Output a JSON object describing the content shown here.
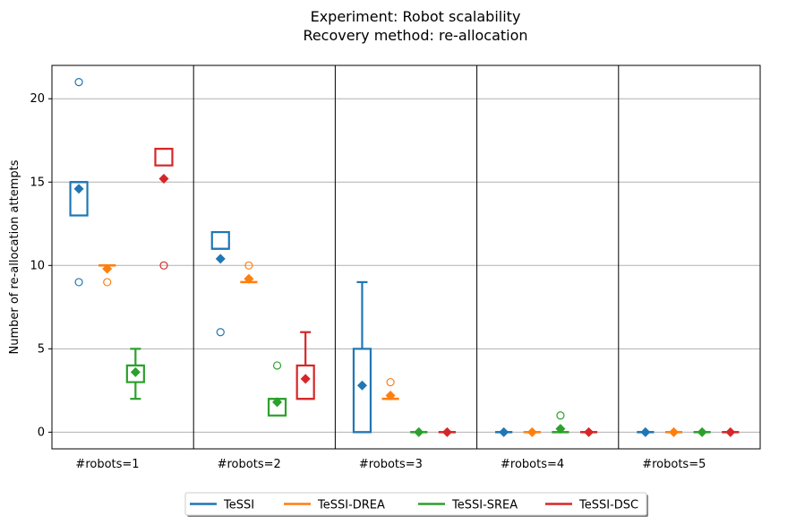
{
  "chart_data": {
    "type": "box",
    "title": [
      "Experiment: Robot scalability",
      "Recovery method: re-allocation"
    ],
    "xlabel": "",
    "ylabel": "Number of re-allocation attempts",
    "ylim": [
      -1,
      22
    ],
    "yticks": [
      0,
      5,
      10,
      15,
      20
    ],
    "grid": "y",
    "legend_position": "bottom-center",
    "categories": [
      "#robots=1",
      "#robots=2",
      "#robots=3",
      "#robots=4",
      "#robots=5"
    ],
    "series": [
      {
        "name": "TeSSI",
        "color": "#1f77b4",
        "boxes": [
          {
            "q1": 13,
            "median": 15,
            "q3": 15,
            "whislo": 13,
            "whishi": 15,
            "mean": 14.6,
            "fliers": [
              21,
              9
            ]
          },
          {
            "q1": 11,
            "median": 11,
            "q3": 12,
            "whislo": 11,
            "whishi": 12,
            "mean": 10.4,
            "fliers": [
              6
            ]
          },
          {
            "q1": 0,
            "median": 0,
            "q3": 5,
            "whislo": 0,
            "whishi": 9,
            "mean": 2.8,
            "fliers": []
          },
          {
            "q1": 0,
            "median": 0,
            "q3": 0,
            "whislo": 0,
            "whishi": 0,
            "mean": 0,
            "fliers": []
          },
          {
            "q1": 0,
            "median": 0,
            "q3": 0,
            "whislo": 0,
            "whishi": 0,
            "mean": 0,
            "fliers": []
          }
        ]
      },
      {
        "name": "TeSSI-DREA",
        "color": "#ff7f0e",
        "boxes": [
          {
            "q1": 10,
            "median": 10,
            "q3": 10,
            "whislo": 10,
            "whishi": 10,
            "mean": 9.8,
            "fliers": [
              9
            ]
          },
          {
            "q1": 9,
            "median": 9,
            "q3": 9,
            "whislo": 9,
            "whishi": 9,
            "mean": 9.2,
            "fliers": [
              10
            ]
          },
          {
            "q1": 2,
            "median": 2,
            "q3": 2,
            "whislo": 2,
            "whishi": 2,
            "mean": 2.2,
            "fliers": [
              3
            ]
          },
          {
            "q1": 0,
            "median": 0,
            "q3": 0,
            "whislo": 0,
            "whishi": 0,
            "mean": 0,
            "fliers": []
          },
          {
            "q1": 0,
            "median": 0,
            "q3": 0,
            "whislo": 0,
            "whishi": 0,
            "mean": 0,
            "fliers": []
          }
        ]
      },
      {
        "name": "TeSSI-SREA",
        "color": "#2ca02c",
        "boxes": [
          {
            "q1": 3,
            "median": 4,
            "q3": 4,
            "whislo": 2,
            "whishi": 5,
            "mean": 3.6,
            "fliers": []
          },
          {
            "q1": 1,
            "median": 2,
            "q3": 2,
            "whislo": 1,
            "whishi": 2,
            "mean": 1.8,
            "fliers": [
              4
            ]
          },
          {
            "q1": 0,
            "median": 0,
            "q3": 0,
            "whislo": 0,
            "whishi": 0,
            "mean": 0,
            "fliers": []
          },
          {
            "q1": 0,
            "median": 0,
            "q3": 0,
            "whislo": 0,
            "whishi": 0,
            "mean": 0.2,
            "fliers": [
              1
            ]
          },
          {
            "q1": 0,
            "median": 0,
            "q3": 0,
            "whislo": 0,
            "whishi": 0,
            "mean": 0,
            "fliers": []
          }
        ]
      },
      {
        "name": "TeSSI-DSC",
        "color": "#d62728",
        "boxes": [
          {
            "q1": 16,
            "median": 17,
            "q3": 17,
            "whislo": 16,
            "whishi": 17,
            "mean": 15.2,
            "fliers": [
              10
            ]
          },
          {
            "q1": 2,
            "median": 2,
            "q3": 4,
            "whislo": 2,
            "whishi": 6,
            "mean": 3.2,
            "fliers": []
          },
          {
            "q1": 0,
            "median": 0,
            "q3": 0,
            "whislo": 0,
            "whishi": 0,
            "mean": 0,
            "fliers": []
          },
          {
            "q1": 0,
            "median": 0,
            "q3": 0,
            "whislo": 0,
            "whishi": 0,
            "mean": 0,
            "fliers": []
          },
          {
            "q1": 0,
            "median": 0,
            "q3": 0,
            "whislo": 0,
            "whishi": 0,
            "mean": 0,
            "fliers": []
          }
        ]
      }
    ]
  }
}
